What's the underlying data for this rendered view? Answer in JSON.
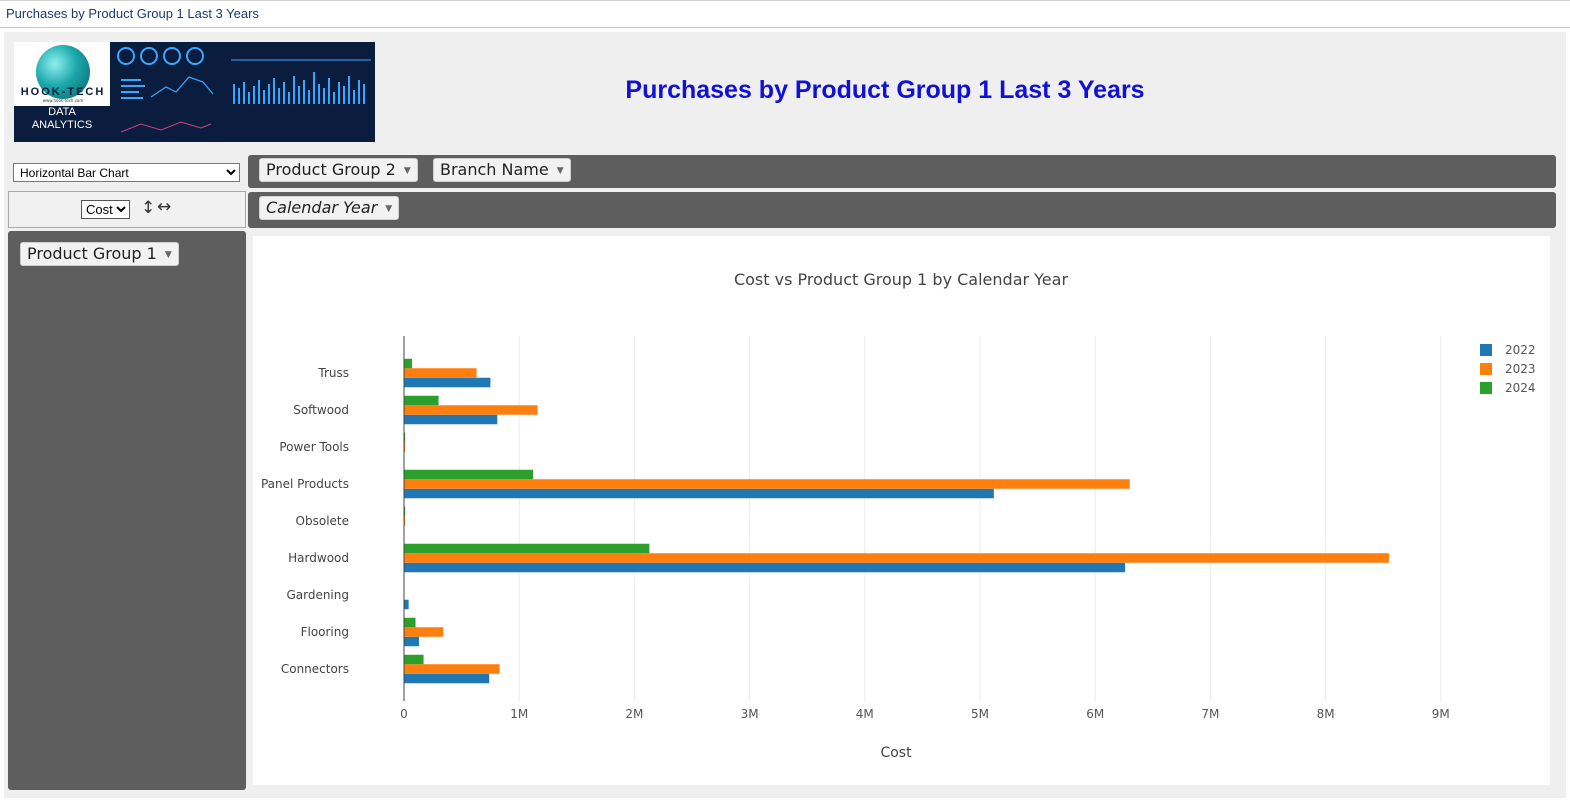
{
  "window": {
    "title": "Purchases by Product Group 1 Last 3 Years"
  },
  "header": {
    "page_title": "Purchases by Product Group 1 Last 3 Years",
    "logo": {
      "brand": "HOOK-TECH",
      "url_text": "www.hook-tech.com",
      "line1": "DATA",
      "line2": "ANALYTICS"
    }
  },
  "controls": {
    "chart_type": {
      "selected": "Horizontal Bar Chart"
    },
    "value": {
      "selected": "Cost",
      "swap_vertical_icon": "↕",
      "swap_horizontal_icon": "↔"
    },
    "columns_fields": [
      "Product Group 2",
      "Branch Name"
    ],
    "column_axis_field": "Calendar Year",
    "row_field": "Product Group 1"
  },
  "chart_data": {
    "type": "bar",
    "orientation": "horizontal",
    "title": "Cost vs Product Group 1 by Calendar Year",
    "xlabel": "Cost",
    "ylabel": "",
    "xlim": [
      0,
      9500000
    ],
    "xticks": [
      0,
      1000000,
      2000000,
      3000000,
      4000000,
      5000000,
      6000000,
      7000000,
      8000000,
      9000000
    ],
    "xtick_labels": [
      "0",
      "1M",
      "2M",
      "3M",
      "4M",
      "5M",
      "6M",
      "7M",
      "8M",
      "9M"
    ],
    "grid": true,
    "legend_position": "top-right",
    "categories": [
      "Truss",
      "Softwood",
      "Power Tools",
      "Panel Products",
      "Obsolete",
      "Hardwood",
      "Gardening",
      "Flooring",
      "Connectors"
    ],
    "series": [
      {
        "name": "2022",
        "color": "#1f77b4",
        "values": [
          750000,
          810000,
          0,
          5120000,
          0,
          6260000,
          40000,
          130000,
          740000
        ]
      },
      {
        "name": "2023",
        "color": "#ff7f0e",
        "values": [
          630000,
          1160000,
          10000,
          6300000,
          10000,
          8550000,
          0,
          340000,
          830000
        ]
      },
      {
        "name": "2024",
        "color": "#2ca02c",
        "values": [
          70000,
          300000,
          10000,
          1120000,
          10000,
          2130000,
          0,
          100000,
          170000
        ]
      }
    ]
  }
}
